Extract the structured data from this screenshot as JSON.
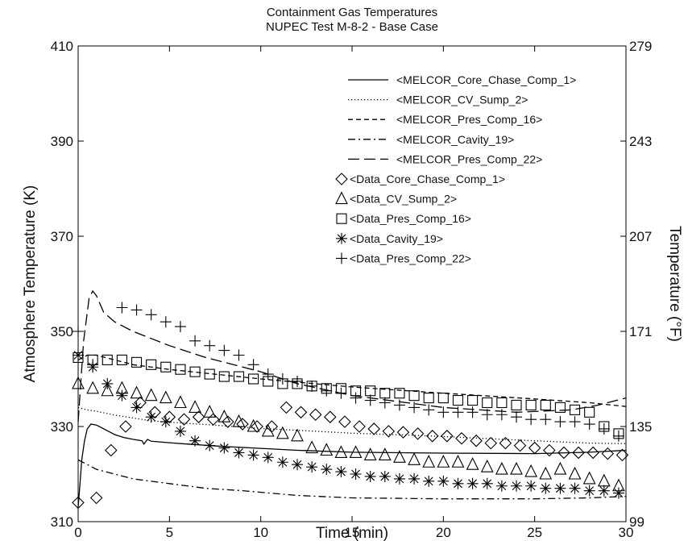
{
  "chart_data": {
    "type": "line",
    "title": "Containment Gas Temperatures",
    "subtitle": "NUPEC Test M-8-2 - Base Case",
    "xlabel": "Time (min)",
    "ylabel": "Atmosphere Temperature (K)",
    "y2label": "Temperature (°F)",
    "xlim": [
      0,
      30
    ],
    "ylim": [
      310,
      410
    ],
    "x_ticks": [
      "0",
      "5",
      "10",
      "15",
      "20",
      "25",
      "30"
    ],
    "y_ticks": [
      "310",
      "330",
      "350",
      "370",
      "390",
      "410"
    ],
    "y2_ticks": [
      "99",
      "135",
      "171",
      "207",
      "243",
      "279"
    ],
    "grid": false,
    "legend_position": "top-right",
    "series": [
      {
        "name": "<MELCOR_Core_Chase_Comp_1>",
        "style": "solid",
        "color": "#000000",
        "points": [
          [
            0,
            313
          ],
          [
            0.1,
            318
          ],
          [
            0.2,
            323
          ],
          [
            0.35,
            327
          ],
          [
            0.5,
            329.5
          ],
          [
            0.7,
            330.5
          ],
          [
            1.0,
            330.3
          ],
          [
            1.5,
            329.3
          ],
          [
            2,
            328.3
          ],
          [
            2.5,
            327.7
          ],
          [
            3,
            327.3
          ],
          [
            3.5,
            327
          ],
          [
            3.6,
            326.3
          ],
          [
            3.8,
            327.3
          ],
          [
            4,
            326.9
          ],
          [
            5,
            326.6
          ],
          [
            6,
            326.3
          ],
          [
            8,
            325.8
          ],
          [
            10,
            325.4
          ],
          [
            12,
            325
          ],
          [
            15,
            324.6
          ],
          [
            20,
            324.4
          ],
          [
            25,
            324.3
          ],
          [
            28,
            324.6
          ],
          [
            30,
            325
          ]
        ]
      },
      {
        "name": "<MELCOR_CV_Sump_2>",
        "style": "dotted",
        "color": "#000000",
        "points": [
          [
            0,
            334
          ],
          [
            0.5,
            333.5
          ],
          [
            1,
            333.2
          ],
          [
            2,
            332.4
          ],
          [
            3,
            331.8
          ],
          [
            4,
            331.2
          ],
          [
            5,
            330.9
          ],
          [
            7,
            330.4
          ],
          [
            10,
            329.6
          ],
          [
            12,
            329.2
          ],
          [
            15,
            328.6
          ],
          [
            18,
            328.2
          ],
          [
            20,
            327.9
          ],
          [
            25,
            327
          ],
          [
            28,
            326.5
          ],
          [
            30,
            326.4
          ]
        ]
      },
      {
        "name": "<MELCOR_Pres_Comp_16>",
        "style": "dashed",
        "color": "#000000",
        "points": [
          [
            0,
            344
          ],
          [
            0.5,
            345
          ],
          [
            1,
            345
          ],
          [
            2,
            344
          ],
          [
            3,
            343
          ],
          [
            5,
            342
          ],
          [
            10,
            340
          ],
          [
            15,
            338.3
          ],
          [
            20,
            337
          ],
          [
            25,
            335.8
          ],
          [
            28,
            335
          ],
          [
            30,
            334.2
          ]
        ]
      },
      {
        "name": "<MELCOR_Cavity_19>",
        "style": "dashdot",
        "color": "#000000",
        "points": [
          [
            0,
            323
          ],
          [
            0.5,
            322
          ],
          [
            1,
            321
          ],
          [
            2,
            320
          ],
          [
            3,
            319
          ],
          [
            4,
            318.5
          ],
          [
            5,
            318
          ],
          [
            7,
            317
          ],
          [
            9,
            316.5
          ],
          [
            12,
            315.5
          ],
          [
            15,
            315
          ],
          [
            20,
            314.8
          ],
          [
            25,
            314.8
          ],
          [
            28,
            315
          ],
          [
            30,
            315.3
          ]
        ]
      },
      {
        "name": "<MELCOR_Pres_Comp_22>",
        "style": "longdash",
        "color": "#000000",
        "points": [
          [
            0,
            331
          ],
          [
            0.3,
            348
          ],
          [
            0.6,
            357
          ],
          [
            0.8,
            358.5
          ],
          [
            1.0,
            357.5
          ],
          [
            1.4,
            354
          ],
          [
            2,
            352
          ],
          [
            3,
            350
          ],
          [
            5,
            347
          ],
          [
            7,
            344.5
          ],
          [
            10,
            341.5
          ],
          [
            12,
            339
          ],
          [
            15,
            336.5
          ],
          [
            20,
            334
          ],
          [
            24,
            333
          ],
          [
            27,
            333.5
          ],
          [
            28.5,
            334.5
          ],
          [
            30,
            336
          ]
        ]
      },
      {
        "name": "<Data_Core_Chase_Comp_1>",
        "marker": "diamond",
        "color": "#000000",
        "points": [
          [
            0,
            314
          ],
          [
            1,
            315
          ],
          [
            1.8,
            325
          ],
          [
            2.6,
            330
          ],
          [
            3.4,
            335
          ],
          [
            4.2,
            333
          ],
          [
            5,
            332
          ],
          [
            5.8,
            331.5
          ],
          [
            6.6,
            332
          ],
          [
            7.4,
            331.5
          ],
          [
            8.2,
            331
          ],
          [
            9,
            330.5
          ],
          [
            9.8,
            330
          ],
          [
            10.6,
            330
          ],
          [
            11.4,
            334
          ],
          [
            12.2,
            333
          ],
          [
            13,
            332.5
          ],
          [
            13.8,
            332
          ],
          [
            14.6,
            331
          ],
          [
            15.4,
            330
          ],
          [
            16.2,
            329.5
          ],
          [
            17,
            329
          ],
          [
            17.8,
            328.8
          ],
          [
            18.6,
            328.5
          ],
          [
            19.4,
            328
          ],
          [
            20.2,
            328
          ],
          [
            21,
            327.5
          ],
          [
            21.8,
            327
          ],
          [
            22.6,
            326.5
          ],
          [
            23.4,
            326.5
          ],
          [
            24.2,
            326
          ],
          [
            25,
            325.5
          ],
          [
            25.8,
            325
          ],
          [
            26.6,
            324.5
          ],
          [
            27.4,
            324.5
          ],
          [
            28.2,
            324.5
          ],
          [
            29,
            324.3
          ],
          [
            29.8,
            324
          ]
        ]
      },
      {
        "name": "<Data_CV_Sump_2>",
        "marker": "triangle",
        "color": "#000000",
        "points": [
          [
            0,
            339
          ],
          [
            0.8,
            338
          ],
          [
            1.6,
            337.5
          ],
          [
            2.4,
            338
          ],
          [
            3.2,
            337
          ],
          [
            4,
            336.5
          ],
          [
            4.8,
            336
          ],
          [
            5.6,
            335
          ],
          [
            6.4,
            334
          ],
          [
            7.2,
            333
          ],
          [
            8,
            332
          ],
          [
            8.8,
            331
          ],
          [
            9.6,
            330
          ],
          [
            10.4,
            329
          ],
          [
            11.2,
            328.5
          ],
          [
            12,
            328
          ],
          [
            12.8,
            325.5
          ],
          [
            13.6,
            325
          ],
          [
            14.4,
            324.5
          ],
          [
            15.2,
            324.5
          ],
          [
            16,
            324
          ],
          [
            16.8,
            324
          ],
          [
            17.6,
            323.5
          ],
          [
            18.4,
            323
          ],
          [
            19.2,
            322.5
          ],
          [
            20,
            322.5
          ],
          [
            20.8,
            322.5
          ],
          [
            21.6,
            322
          ],
          [
            22.4,
            321.5
          ],
          [
            23.2,
            321
          ],
          [
            24,
            321
          ],
          [
            24.8,
            320.5
          ],
          [
            25.6,
            320
          ],
          [
            26.4,
            321
          ],
          [
            27.2,
            320
          ],
          [
            28,
            319
          ],
          [
            28.8,
            318.5
          ],
          [
            29.6,
            317.5
          ]
        ]
      },
      {
        "name": "<Data_Pres_Comp_16>",
        "marker": "square",
        "color": "#000000",
        "points": [
          [
            0,
            344.5
          ],
          [
            0.8,
            344
          ],
          [
            1.6,
            344
          ],
          [
            2.4,
            344
          ],
          [
            3.2,
            343.5
          ],
          [
            4,
            343
          ],
          [
            4.8,
            342.5
          ],
          [
            5.6,
            342
          ],
          [
            6.4,
            341.5
          ],
          [
            7.2,
            341
          ],
          [
            8,
            340.5
          ],
          [
            8.8,
            340.5
          ],
          [
            9.6,
            340
          ],
          [
            10.4,
            339.5
          ],
          [
            11.2,
            339
          ],
          [
            12,
            339
          ],
          [
            12.8,
            338.5
          ],
          [
            13.6,
            338
          ],
          [
            14.4,
            338
          ],
          [
            15.2,
            337.5
          ],
          [
            16,
            337.5
          ],
          [
            16.8,
            337
          ],
          [
            17.6,
            337
          ],
          [
            18.4,
            336.5
          ],
          [
            19.2,
            336
          ],
          [
            20,
            336
          ],
          [
            20.8,
            335.5
          ],
          [
            21.6,
            335.5
          ],
          [
            22.4,
            335
          ],
          [
            23.2,
            335
          ],
          [
            24,
            334.5
          ],
          [
            24.8,
            334.5
          ],
          [
            25.6,
            334.5
          ],
          [
            26.4,
            334
          ],
          [
            27.2,
            333.5
          ],
          [
            28,
            333
          ],
          [
            28.8,
            330
          ],
          [
            29.6,
            328.5
          ]
        ]
      },
      {
        "name": "<Data_Cavity_19>",
        "marker": "asterisk",
        "color": "#000000",
        "points": [
          [
            0,
            345
          ],
          [
            0.8,
            342.5
          ],
          [
            1.6,
            339
          ],
          [
            2.4,
            336.5
          ],
          [
            3.2,
            334
          ],
          [
            4,
            332
          ],
          [
            4.8,
            331
          ],
          [
            5.6,
            329
          ],
          [
            6.4,
            327
          ],
          [
            7.2,
            326
          ],
          [
            8,
            325.5
          ],
          [
            8.8,
            324.5
          ],
          [
            9.6,
            324
          ],
          [
            10.4,
            323.5
          ],
          [
            11.2,
            322.5
          ],
          [
            12,
            322
          ],
          [
            12.8,
            321.5
          ],
          [
            13.6,
            321
          ],
          [
            14.4,
            320.5
          ],
          [
            15.2,
            320
          ],
          [
            16,
            319.5
          ],
          [
            16.8,
            319.5
          ],
          [
            17.6,
            319
          ],
          [
            18.4,
            319
          ],
          [
            19.2,
            318.5
          ],
          [
            20,
            318.5
          ],
          [
            20.8,
            318
          ],
          [
            21.6,
            318
          ],
          [
            22.4,
            318
          ],
          [
            23.2,
            317.5
          ],
          [
            24,
            317.5
          ],
          [
            24.8,
            317.5
          ],
          [
            25.6,
            317
          ],
          [
            26.4,
            317
          ],
          [
            27.2,
            317
          ],
          [
            28,
            316.5
          ],
          [
            28.8,
            316.5
          ],
          [
            29.6,
            316
          ]
        ]
      },
      {
        "name": "<Data_Pres_Comp_22>",
        "marker": "plus",
        "color": "#000000",
        "points": [
          [
            0,
            350
          ],
          [
            0.8,
            343
          ],
          [
            2.4,
            355
          ],
          [
            3.2,
            354.5
          ],
          [
            4,
            353.5
          ],
          [
            4.8,
            352
          ],
          [
            5.6,
            351
          ],
          [
            6.4,
            348
          ],
          [
            7.2,
            347
          ],
          [
            8,
            346
          ],
          [
            8.8,
            345
          ],
          [
            9.6,
            343
          ],
          [
            10.4,
            341
          ],
          [
            11.2,
            340
          ],
          [
            12,
            339.5
          ],
          [
            12.8,
            338.5
          ],
          [
            13.6,
            337.5
          ],
          [
            14.4,
            337
          ],
          [
            15.2,
            336
          ],
          [
            16,
            335.5
          ],
          [
            16.8,
            335
          ],
          [
            17.6,
            334.5
          ],
          [
            18.4,
            334
          ],
          [
            19.2,
            333.5
          ],
          [
            20,
            333
          ],
          [
            20.8,
            333
          ],
          [
            21.6,
            333
          ],
          [
            22.4,
            332.5
          ],
          [
            23.2,
            332.5
          ],
          [
            24,
            332
          ],
          [
            24.8,
            331.5
          ],
          [
            25.6,
            331.5
          ],
          [
            26.4,
            331
          ],
          [
            27.2,
            331
          ],
          [
            28,
            330.5
          ],
          [
            28.8,
            329.5
          ],
          [
            29.6,
            328
          ]
        ]
      }
    ]
  }
}
